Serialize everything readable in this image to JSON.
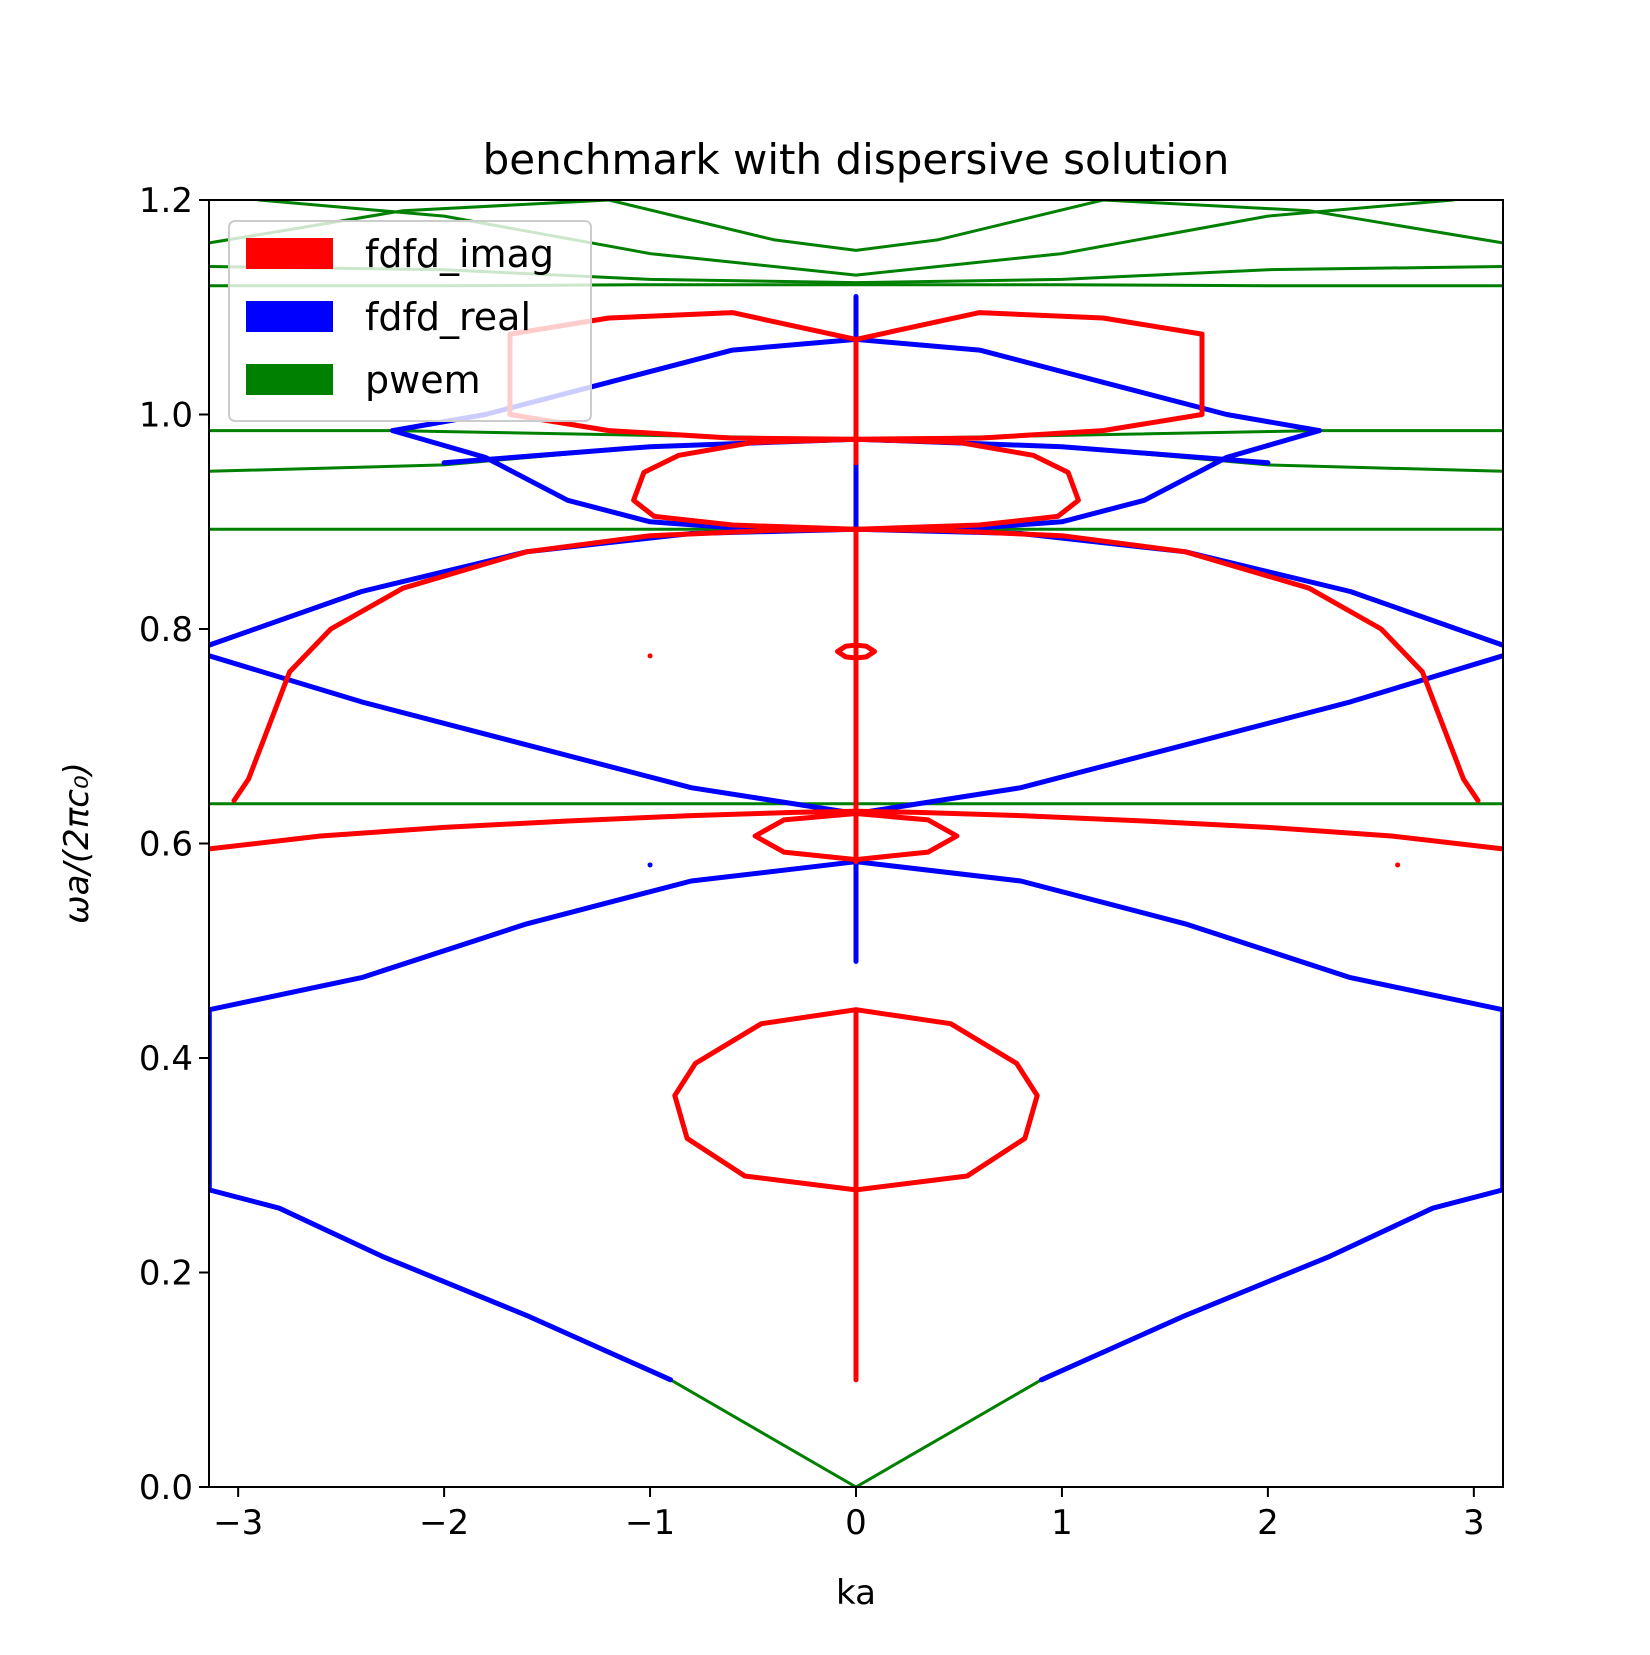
{
  "chart_data": {
    "type": "scatter",
    "title": "benchmark with dispersive solution",
    "xlabel": "ka",
    "ylabel": "ωa/(2πc₀)",
    "xlim": [
      -3.14159,
      3.14159
    ],
    "ylim": [
      0.0,
      1.2
    ],
    "xticks": [
      -3,
      -2,
      -1,
      0,
      1,
      2,
      3
    ],
    "xtick_labels": [
      "−3",
      "−2",
      "−1",
      "0",
      "1",
      "2",
      "3"
    ],
    "yticks": [
      0.0,
      0.2,
      0.4,
      0.6,
      0.8,
      1.0,
      1.2
    ],
    "ytick_labels": [
      "0.0",
      "0.2",
      "0.4",
      "0.6",
      "0.8",
      "1.0",
      "1.2"
    ],
    "grid": false,
    "legend_position": "top-left",
    "series": [
      {
        "name": "fdfd_imag",
        "color": "#ff0000",
        "curves": [
          {
            "x": [
              0,
              0
            ],
            "y": [
              0.1,
              0.445
            ]
          },
          {
            "x": [
              0,
              0
            ],
            "y": [
              0.583,
              0.893
            ]
          },
          {
            "x": [
              0,
              0
            ],
            "y": [
              0.955,
              1.07
            ]
          },
          {
            "x": [
              0,
              0.46,
              0.78,
              0.88,
              0.82,
              0.54,
              0,
              -0.54,
              -0.82,
              -0.88,
              -0.78,
              -0.46,
              0
            ],
            "y": [
              0.445,
              0.432,
              0.395,
              0.365,
              0.325,
              0.29,
              0.277,
              0.29,
              0.325,
              0.365,
              0.395,
              0.432,
              0.445
            ]
          },
          {
            "x": [
              0,
              0.35,
              0.49,
              0.35,
              0,
              -0.35,
              -0.49,
              -0.35,
              0
            ],
            "y": [
              0.628,
              0.622,
              0.607,
              0.592,
              0.585,
              0.592,
              0.607,
              0.622,
              0.628
            ]
          },
          {
            "x": [
              0,
              0.05,
              0.09,
              0.05,
              0,
              -0.05,
              -0.09,
              -0.05,
              0
            ],
            "y": [
              0.785,
              0.784,
              0.779,
              0.774,
              0.773,
              0.774,
              0.779,
              0.784,
              0.785
            ]
          },
          {
            "x": [
              -3.14,
              -2.6,
              -2.0,
              -1.4,
              -0.8,
              -0.3,
              0,
              0.3,
              0.8,
              1.4,
              2.0,
              2.6,
              3.14
            ],
            "y": [
              0.595,
              0.607,
              0.615,
              0.621,
              0.626,
              0.629,
              0.63,
              0.629,
              0.626,
              0.621,
              0.615,
              0.607,
              0.595
            ]
          },
          {
            "x": [
              -3.02,
              -2.95,
              -2.85,
              -2.75,
              -2.55,
              -2.2,
              -1.6,
              -1.0,
              -0.4,
              0,
              0.4,
              1.0,
              1.6,
              2.2,
              2.55,
              2.75,
              2.85,
              2.95,
              3.02
            ],
            "y": [
              0.64,
              0.66,
              0.71,
              0.76,
              0.8,
              0.838,
              0.872,
              0.887,
              0.892,
              0.893,
              0.892,
              0.887,
              0.872,
              0.838,
              0.8,
              0.76,
              0.71,
              0.66,
              0.64
            ]
          },
          {
            "x": [
              0,
              0.6,
              0.98,
              1.08,
              1.03,
              0.86,
              0.5,
              0,
              -0.5,
              -0.86,
              -1.03,
              -1.08,
              -0.98,
              -0.6,
              0
            ],
            "y": [
              0.893,
              0.897,
              0.905,
              0.92,
              0.946,
              0.962,
              0.974,
              0.977,
              0.974,
              0.962,
              0.946,
              0.92,
              0.905,
              0.897,
              0.893
            ]
          },
          {
            "x": [
              0,
              -0.6,
              -1.2,
              -1.68,
              -1.68,
              -1.2,
              -0.6,
              0,
              0.6,
              1.2,
              1.68,
              1.68,
              1.2,
              0.6,
              0
            ],
            "y": [
              0.977,
              0.978,
              0.985,
              1.0,
              1.075,
              1.09,
              1.095,
              1.07,
              1.095,
              1.09,
              1.075,
              1.0,
              0.985,
              0.978,
              0.977
            ]
          }
        ],
        "points": [
          {
            "x": 2.63,
            "y": 0.58
          },
          {
            "x": -1.0,
            "y": 0.775
          }
        ]
      },
      {
        "name": "fdfd_real",
        "color": "#0000ff",
        "curves": [
          {
            "x": [
              -0.9,
              -1.6,
              -2.3,
              -2.8,
              -3.14
            ],
            "y": [
              0.1,
              0.16,
              0.215,
              0.26,
              0.277
            ]
          },
          {
            "x": [
              0.9,
              1.6,
              2.3,
              2.8,
              3.14
            ],
            "y": [
              0.1,
              0.16,
              0.215,
              0.26,
              0.277
            ]
          },
          {
            "x": [
              -3.14,
              -3.14
            ],
            "y": [
              0.277,
              0.445
            ]
          },
          {
            "x": [
              3.14,
              3.14
            ],
            "y": [
              0.277,
              0.445
            ]
          },
          {
            "x": [
              -3.14,
              -2.4,
              -1.6,
              -0.8,
              0,
              0.8,
              1.6,
              2.4,
              3.14
            ],
            "y": [
              0.445,
              0.475,
              0.525,
              0.565,
              0.583,
              0.565,
              0.525,
              0.475,
              0.445
            ]
          },
          {
            "x": [
              -3.14,
              -2.4,
              -1.6,
              -0.8,
              0,
              0.8,
              1.6,
              2.4,
              3.14
            ],
            "y": [
              0.775,
              0.732,
              0.692,
              0.652,
              0.628,
              0.652,
              0.692,
              0.732,
              0.775
            ]
          },
          {
            "x": [
              -3.14,
              -2.4,
              -1.6,
              -0.8,
              0,
              0.8,
              1.6,
              2.4,
              3.14
            ],
            "y": [
              0.785,
              0.835,
              0.872,
              0.889,
              0.893,
              0.889,
              0.872,
              0.835,
              0.785
            ]
          },
          {
            "x": [
              -2.25,
              -1.8,
              -1.4,
              -1.0,
              -0.5,
              0,
              0.5,
              1.0,
              1.4,
              1.8,
              2.25
            ],
            "y": [
              0.985,
              0.96,
              0.92,
              0.9,
              0.893,
              0.893,
              0.893,
              0.9,
              0.92,
              0.96,
              0.985
            ]
          },
          {
            "x": [
              -2.25,
              -1.8,
              -1.2,
              -0.6,
              0,
              0.6,
              1.2,
              1.8,
              2.25
            ],
            "y": [
              0.985,
              1.0,
              1.03,
              1.06,
              1.07,
              1.06,
              1.03,
              1.0,
              0.985
            ]
          },
          {
            "x": [
              -2.0,
              -1.0,
              0,
              1.0,
              2.0
            ],
            "y": [
              0.955,
              0.97,
              0.977,
              0.97,
              0.955
            ]
          },
          {
            "x": [
              0,
              0
            ],
            "y": [
              0.49,
              1.11
            ]
          }
        ],
        "points": [
          {
            "x": -1.0,
            "y": 0.58
          }
        ]
      },
      {
        "name": "pwem",
        "color": "#008000",
        "curves": [
          {
            "x": [
              -0.9,
              -0.45,
              0,
              0.45,
              0.9
            ],
            "y": [
              0.1,
              0.05,
              0.0,
              0.05,
              0.1
            ]
          },
          {
            "x": [
              -3.14,
              3.14
            ],
            "y": [
              0.637,
              0.637
            ]
          },
          {
            "x": [
              -3.14,
              -2.0,
              -1.0,
              0,
              1.0,
              2.0,
              3.14
            ],
            "y": [
              0.893,
              0.893,
              0.893,
              0.893,
              0.893,
              0.893,
              0.893
            ]
          },
          {
            "x": [
              -3.14,
              -2.0,
              -1.0,
              0,
              1.0,
              2.0,
              3.14
            ],
            "y": [
              0.947,
              0.953,
              0.97,
              0.977,
              0.97,
              0.953,
              0.947
            ]
          },
          {
            "x": [
              -3.14,
              -2.25,
              0,
              2.25,
              3.14
            ],
            "y": [
              0.985,
              0.985,
              0.977,
              0.985,
              0.985
            ]
          },
          {
            "x": [
              -3.14,
              -2.0,
              -1.0,
              0,
              1.0,
              2.0,
              3.14
            ],
            "y": [
              1.12,
              1.12,
              1.121,
              1.121,
              1.121,
              1.12,
              1.12
            ]
          },
          {
            "x": [
              -3.14,
              -2.0,
              -1.0,
              0,
              1.0,
              2.0,
              3.14
            ],
            "y": [
              1.138,
              1.135,
              1.126,
              1.123,
              1.126,
              1.135,
              1.138
            ]
          },
          {
            "x": [
              -3.14,
              -2.2,
              -1.2,
              -0.4,
              0,
              0.4,
              1.2,
              2.2,
              3.14
            ],
            "y": [
              1.16,
              1.19,
              1.2,
              1.163,
              1.153,
              1.163,
              1.2,
              1.19,
              1.16
            ]
          },
          {
            "x": [
              -2.9,
              -2.0,
              -1.0,
              0,
              1.0,
              2.0,
              2.9
            ],
            "y": [
              1.2,
              1.185,
              1.15,
              1.13,
              1.15,
              1.185,
              1.2
            ]
          }
        ],
        "points": []
      }
    ]
  }
}
